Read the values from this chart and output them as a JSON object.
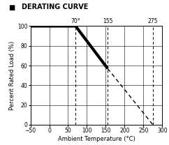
{
  "title": "DERATING CURVE",
  "xlabel": "Ambient Temperature (°C)",
  "ylabel": "Percent Rated Load (%)",
  "xlim": [
    -50,
    300
  ],
  "ylim": [
    0,
    100
  ],
  "xticks": [
    -50,
    0,
    50,
    100,
    150,
    200,
    250,
    300
  ],
  "yticks": [
    0,
    20,
    40,
    60,
    80,
    100
  ],
  "vline_positions": [
    70,
    155,
    275
  ],
  "vline_labels": [
    "70°",
    "155",
    "275"
  ],
  "solid_line": {
    "x": [
      -50,
      70,
      155
    ],
    "y": [
      100,
      100,
      57
    ],
    "color": "black",
    "linewidth": 3.0
  },
  "dashed_line": {
    "x": [
      155,
      275
    ],
    "y": [
      57,
      0
    ],
    "color": "black",
    "linewidth": 1.0,
    "linestyle": "--"
  },
  "background_color": "#ffffff",
  "title_fontsize": 7.0,
  "label_fontsize": 6.0,
  "tick_fontsize": 5.5
}
